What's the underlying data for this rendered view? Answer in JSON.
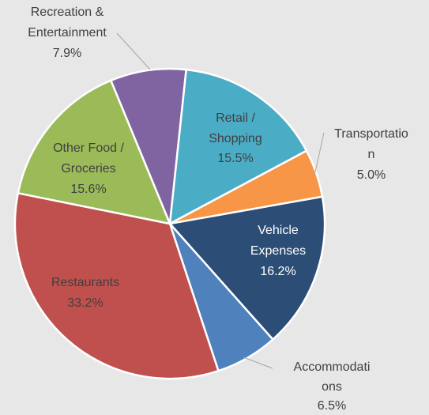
{
  "chart_data": {
    "type": "pie",
    "categories": [
      "Recreation & Entertainment",
      "Retail / Shopping",
      "Transportation",
      "Vehicle Expenses",
      "Accommodations",
      "Restaurants",
      "Other Food / Groceries"
    ],
    "values": [
      7.9,
      15.5,
      5.0,
      16.2,
      6.5,
      33.2,
      15.6
    ],
    "value_labels": [
      "7.9%",
      "15.5%",
      "5.0%",
      "16.2%",
      "6.5%",
      "33.2%",
      "15.6%"
    ],
    "colors": [
      "#8064a2",
      "#4bacc6",
      "#f79646",
      "#2c4d75",
      "#4f81bd",
      "#c0504d",
      "#9bbb59"
    ]
  }
}
